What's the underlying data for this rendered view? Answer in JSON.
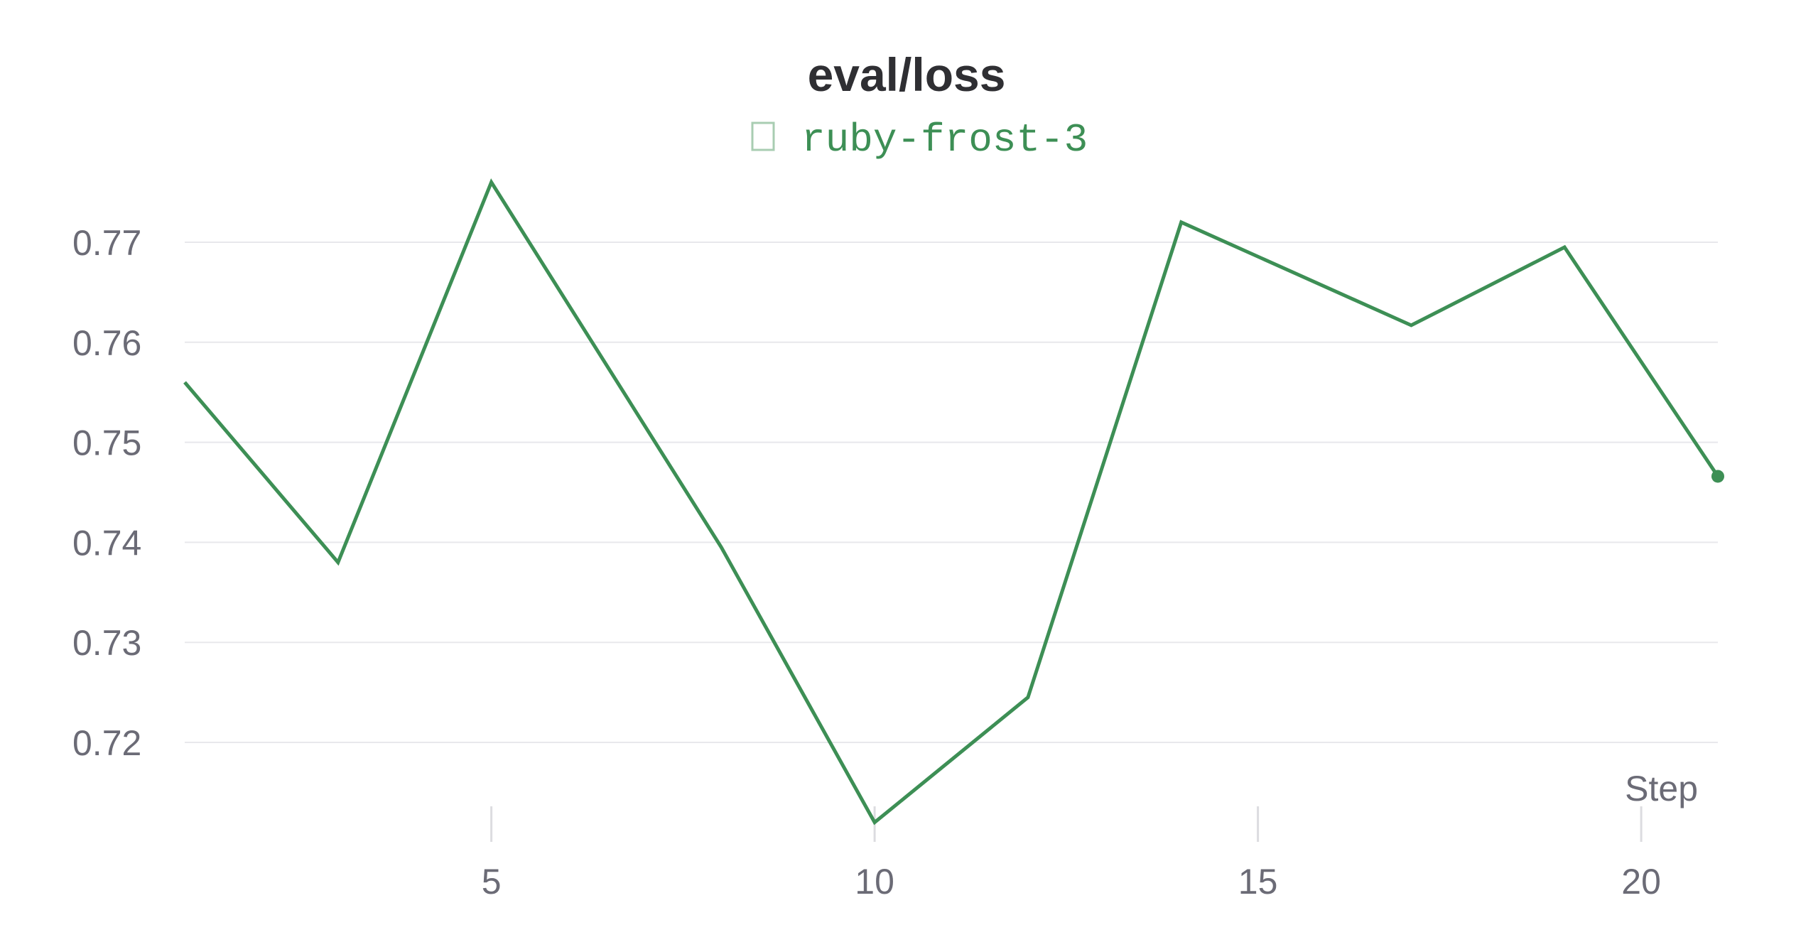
{
  "chart_data": {
    "type": "line",
    "title": "eval/loss",
    "xlabel": "Step",
    "ylabel": "",
    "xlim": [
      1,
      21
    ],
    "ylim": [
      0.7118,
      0.7775
    ],
    "x_ticks": [
      5,
      10,
      15,
      20
    ],
    "y_ticks": [
      0.72,
      0.73,
      0.74,
      0.75,
      0.76,
      0.77
    ],
    "grid": "horizontal",
    "legend_position": "top-center",
    "series": [
      {
        "name": "ruby-frost-3",
        "color": "#3d8f55",
        "x": [
          1,
          3,
          5,
          8,
          10,
          12,
          14,
          17,
          19,
          21
        ],
        "y": [
          0.756,
          0.738,
          0.776,
          0.7395,
          0.712,
          0.7245,
          0.772,
          0.7617,
          0.7695,
          0.7466
        ]
      }
    ]
  },
  "colors": {
    "gridline": "#e8e8ec",
    "tick_mark": "#dcdce0",
    "tick_text": "#6b6b76",
    "title": "#2f2f33",
    "legend_box_border": "#a8cdb2"
  }
}
